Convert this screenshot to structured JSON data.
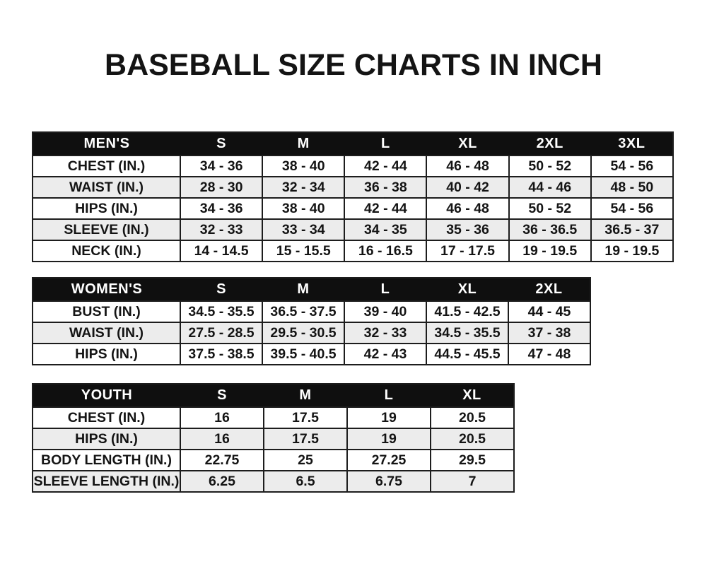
{
  "page": {
    "title": "BASEBALL SIZE CHARTS IN INCH"
  },
  "colors": {
    "page_bg": "#ffffff",
    "text": "#141414",
    "header_bg": "#0f0f0f",
    "header_text": "#ffffff",
    "row_bg": "#ffffff",
    "row_alt_bg": "#ececec",
    "grid_line": "#1d1d1d"
  },
  "chart_data": [
    {
      "type": "table",
      "title": "MEN'S",
      "unit": "inches",
      "columns": [
        "MEN'S",
        "S",
        "M",
        "L",
        "XL",
        "2XL",
        "3XL"
      ],
      "rows": [
        [
          "CHEST (IN.)",
          "34 - 36",
          "38 - 40",
          "42 - 44",
          "46 - 48",
          "50 - 52",
          "54 - 56"
        ],
        [
          "WAIST (IN.)",
          "28 - 30",
          "32 - 34",
          "36 - 38",
          "40 - 42",
          "44 - 46",
          "48 - 50"
        ],
        [
          "HIPS (IN.)",
          "34 - 36",
          "38 - 40",
          "42 - 44",
          "46 - 48",
          "50 - 52",
          "54 - 56"
        ],
        [
          "SLEEVE (IN.)",
          "32 - 33",
          "33 - 34",
          "34 - 35",
          "35 - 36",
          "36 - 36.5",
          "36.5 - 37"
        ],
        [
          "NECK (IN.)",
          "14 - 14.5",
          "15 - 15.5",
          "16 - 16.5",
          "17 - 17.5",
          "19 - 19.5",
          "19 - 19.5"
        ]
      ]
    },
    {
      "type": "table",
      "title": "WOMEN'S",
      "unit": "inches",
      "columns": [
        "WOMEN'S",
        "S",
        "M",
        "L",
        "XL",
        "2XL"
      ],
      "rows": [
        [
          "BUST (IN.)",
          "34.5 - 35.5",
          "36.5 - 37.5",
          "39 - 40",
          "41.5 - 42.5",
          "44 - 45"
        ],
        [
          "WAIST (IN.)",
          "27.5 - 28.5",
          "29.5 - 30.5",
          "32 - 33",
          "34.5 - 35.5",
          "37 - 38"
        ],
        [
          "HIPS (IN.)",
          "37.5 - 38.5",
          "39.5 - 40.5",
          "42 - 43",
          "44.5 - 45.5",
          "47 - 48"
        ]
      ]
    },
    {
      "type": "table",
      "title": "YOUTH",
      "unit": "inches",
      "columns": [
        "YOUTH",
        "S",
        "M",
        "L",
        "XL"
      ],
      "rows": [
        [
          "CHEST (IN.)",
          "16",
          "17.5",
          "19",
          "20.5"
        ],
        [
          "HIPS (IN.)",
          "16",
          "17.5",
          "19",
          "20.5"
        ],
        [
          "BODY LENGTH (IN.)",
          "22.75",
          "25",
          "27.25",
          "29.5"
        ],
        [
          "SLEEVE LENGTH (IN.)",
          "6.25",
          "6.5",
          "6.75",
          "7"
        ]
      ]
    }
  ]
}
